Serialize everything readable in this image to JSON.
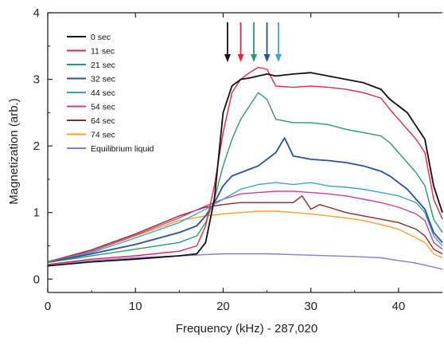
{
  "chart_data": {
    "type": "line",
    "title": "",
    "xlabel": "Frequency (kHz) - 287,020",
    "ylabel": "Magnetization (arb.)",
    "xlim": [
      0,
      45
    ],
    "ylim": [
      -0.2,
      4
    ],
    "xticks": [
      "0",
      "10",
      "20",
      "30",
      "40"
    ],
    "yticks": [
      "0",
      "1",
      "2",
      "3",
      "4"
    ],
    "grid": false,
    "legend_position": "top-left",
    "arrows": [
      {
        "x": 20.5,
        "color": "#111111"
      },
      {
        "x": 22.0,
        "color": "#e0264a"
      },
      {
        "x": 23.5,
        "color": "#2a9a6e"
      },
      {
        "x": 25.0,
        "color": "#2c4f9a"
      },
      {
        "x": 26.3,
        "color": "#3aa6c8"
      }
    ],
    "series": [
      {
        "name": "0 sec",
        "color": "#111111",
        "x": [
          0,
          5,
          10,
          15,
          17,
          18,
          19,
          20,
          21,
          22,
          23,
          24,
          25,
          26,
          28,
          30,
          32,
          34,
          36,
          38,
          39,
          40,
          41,
          42,
          43,
          44,
          45
        ],
        "y": [
          0.2,
          0.26,
          0.3,
          0.35,
          0.38,
          0.55,
          1.2,
          2.5,
          2.9,
          3.0,
          3.02,
          3.05,
          3.08,
          3.05,
          3.08,
          3.1,
          3.05,
          3.0,
          2.95,
          2.85,
          2.7,
          2.6,
          2.5,
          2.3,
          2.1,
          1.4,
          1.0
        ]
      },
      {
        "name": "11 sec",
        "color": "#e0264a",
        "x": [
          0,
          5,
          10,
          15,
          17,
          18,
          19,
          20,
          21,
          22,
          23,
          24,
          25,
          26,
          28,
          30,
          32,
          34,
          36,
          38,
          39,
          40,
          41,
          42,
          43,
          44,
          45
        ],
        "y": [
          0.22,
          0.3,
          0.35,
          0.42,
          0.5,
          0.8,
          1.4,
          2.2,
          2.8,
          3.0,
          3.1,
          3.18,
          3.15,
          2.9,
          2.88,
          2.9,
          2.88,
          2.85,
          2.8,
          2.72,
          2.55,
          2.4,
          2.25,
          2.1,
          1.9,
          1.2,
          0.9
        ]
      },
      {
        "name": "21 sec",
        "color": "#2a9a6e",
        "x": [
          0,
          5,
          10,
          15,
          17,
          18,
          19,
          20,
          21,
          22,
          23,
          24,
          25,
          26,
          28,
          30,
          32,
          34,
          36,
          38,
          39,
          40,
          41,
          42,
          43,
          44,
          45
        ],
        "y": [
          0.25,
          0.35,
          0.45,
          0.55,
          0.65,
          0.85,
          1.2,
          1.7,
          2.1,
          2.4,
          2.6,
          2.8,
          2.7,
          2.4,
          2.35,
          2.35,
          2.32,
          2.25,
          2.2,
          2.15,
          2.05,
          1.9,
          1.75,
          1.6,
          1.4,
          0.9,
          0.7
        ]
      },
      {
        "name": "32 sec",
        "color": "#2c4f9a",
        "x": [
          0,
          5,
          10,
          15,
          17,
          18,
          19,
          20,
          21,
          22,
          23,
          24,
          25,
          26,
          27,
          28,
          30,
          32,
          34,
          36,
          38,
          39,
          40,
          41,
          42,
          43,
          44,
          45
        ],
        "y": [
          0.25,
          0.38,
          0.52,
          0.7,
          0.8,
          0.95,
          1.15,
          1.4,
          1.55,
          1.6,
          1.65,
          1.7,
          1.8,
          1.9,
          2.12,
          1.85,
          1.8,
          1.78,
          1.75,
          1.7,
          1.62,
          1.55,
          1.45,
          1.35,
          1.2,
          1.05,
          0.7,
          0.55
        ]
      },
      {
        "name": "44 sec",
        "color": "#3aa6c8",
        "x": [
          0,
          5,
          10,
          15,
          18,
          20,
          22,
          24,
          26,
          28,
          30,
          32,
          34,
          36,
          38,
          40,
          42,
          43,
          44,
          45
        ],
        "y": [
          0.25,
          0.4,
          0.62,
          0.85,
          1.05,
          1.2,
          1.35,
          1.42,
          1.45,
          1.42,
          1.45,
          1.4,
          1.38,
          1.35,
          1.3,
          1.25,
          1.15,
          1.0,
          0.65,
          0.5
        ]
      },
      {
        "name": "54 sec",
        "color": "#d0408a",
        "x": [
          0,
          5,
          10,
          15,
          18,
          20,
          22,
          24,
          26,
          28,
          30,
          32,
          34,
          36,
          38,
          40,
          42,
          43,
          44,
          45
        ],
        "y": [
          0.26,
          0.42,
          0.66,
          0.92,
          1.1,
          1.2,
          1.28,
          1.3,
          1.32,
          1.32,
          1.3,
          1.28,
          1.25,
          1.2,
          1.15,
          1.08,
          0.98,
          0.88,
          0.55,
          0.45
        ]
      },
      {
        "name": "64 sec",
        "color": "#8b2a2a",
        "x": [
          0,
          5,
          10,
          15,
          18,
          20,
          22,
          24,
          26,
          28,
          29,
          30,
          31,
          32,
          34,
          36,
          38,
          40,
          42,
          43,
          44,
          45
        ],
        "y": [
          0.26,
          0.44,
          0.68,
          0.95,
          1.08,
          1.12,
          1.15,
          1.15,
          1.15,
          1.15,
          1.25,
          1.05,
          1.12,
          1.08,
          1.0,
          0.95,
          0.9,
          0.85,
          0.75,
          0.65,
          0.45,
          0.38
        ]
      },
      {
        "name": "74 sec",
        "color": "#f0a030",
        "x": [
          0,
          5,
          10,
          15,
          18,
          20,
          22,
          24,
          26,
          28,
          30,
          32,
          34,
          36,
          38,
          40,
          42,
          43,
          44,
          45
        ],
        "y": [
          0.25,
          0.42,
          0.65,
          0.88,
          0.95,
          0.98,
          1.0,
          1.02,
          1.02,
          1.0,
          0.98,
          0.95,
          0.92,
          0.88,
          0.82,
          0.75,
          0.62,
          0.55,
          0.38,
          0.32
        ]
      },
      {
        "name": "Equilibrium liquid",
        "color": "#8a7ad8",
        "x": [
          0,
          5,
          10,
          15,
          20,
          25,
          30,
          35,
          38,
          40,
          42,
          44,
          45
        ],
        "y": [
          0.22,
          0.28,
          0.32,
          0.35,
          0.38,
          0.38,
          0.36,
          0.34,
          0.32,
          0.28,
          0.24,
          0.18,
          0.15
        ]
      }
    ]
  }
}
